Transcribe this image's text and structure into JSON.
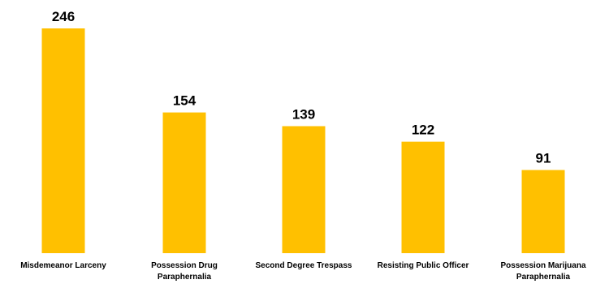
{
  "chart_data": {
    "type": "bar",
    "title": "",
    "xlabel": "",
    "ylabel": "",
    "categories": [
      [
        "Misdemeanor Larceny"
      ],
      [
        "Possession Drug",
        "Paraphernalia"
      ],
      [
        "Second Degree Trespass"
      ],
      [
        "Resisting Public Officer"
      ],
      [
        "Possession Marijuana",
        "Paraphernalia"
      ]
    ],
    "values": [
      246,
      154,
      139,
      122,
      91
    ],
    "ylim": [
      0,
      246
    ],
    "bar_color": "#FFC000",
    "show_data_labels": true,
    "grid": false,
    "legend": "none",
    "axes_visible": false
  }
}
